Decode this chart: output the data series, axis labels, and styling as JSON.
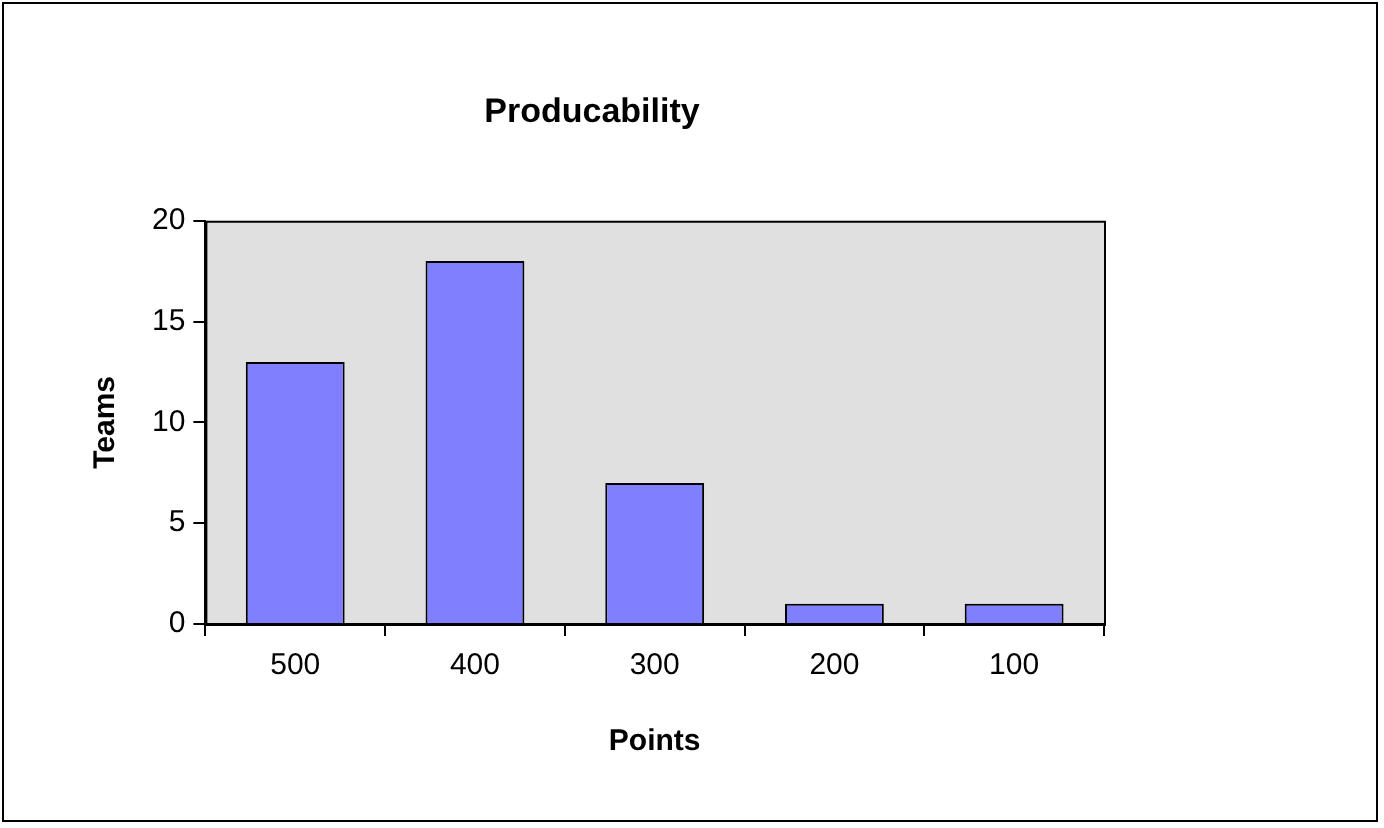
{
  "chart_data": {
    "type": "bar",
    "title": "Producability",
    "xlabel": "Points",
    "ylabel": "Teams",
    "categories": [
      "500",
      "400",
      "300",
      "200",
      "100"
    ],
    "values": [
      13,
      18,
      7,
      1,
      1
    ],
    "color": "#8080ff",
    "ylim": [
      0,
      20
    ],
    "yticks": [
      0,
      5,
      10,
      15,
      20
    ],
    "grid": false,
    "legend": false
  }
}
